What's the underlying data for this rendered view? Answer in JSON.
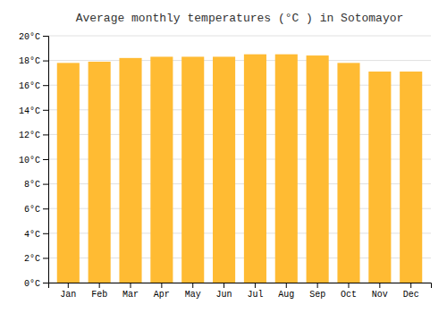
{
  "chart_data": {
    "type": "bar",
    "title": "Average monthly temperatures (°C ) in Sotomayor",
    "categories": [
      "Jan",
      "Feb",
      "Mar",
      "Apr",
      "May",
      "Jun",
      "Jul",
      "Aug",
      "Sep",
      "Oct",
      "Nov",
      "Dec"
    ],
    "values": [
      17.8,
      17.9,
      18.2,
      18.3,
      18.3,
      18.3,
      18.5,
      18.5,
      18.4,
      17.8,
      17.1,
      17.1
    ],
    "color": "#FFBB33",
    "ylim": [
      0,
      20
    ],
    "yticks": [
      {
        "value": 0,
        "label": "0°C"
      },
      {
        "value": 2,
        "label": "2°C"
      },
      {
        "value": 4,
        "label": "4°C"
      },
      {
        "value": 6,
        "label": "6°C"
      },
      {
        "value": 8,
        "label": "8°C"
      },
      {
        "value": 10,
        "label": "10°C"
      },
      {
        "value": 12,
        "label": "12°C"
      },
      {
        "value": 14,
        "label": "14°C"
      },
      {
        "value": 16,
        "label": "16°C"
      },
      {
        "value": 18,
        "label": "18°C"
      },
      {
        "value": 20,
        "label": "20°C"
      }
    ],
    "grid": true
  }
}
